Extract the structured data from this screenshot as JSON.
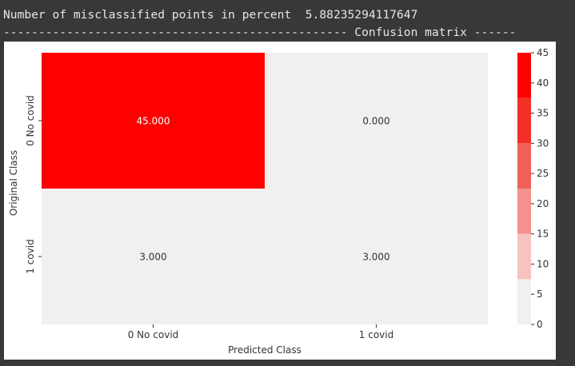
{
  "console": {
    "line1": "Number of misclassified points in percent  5.88235294117647",
    "line2": "------------------------------------------------- Confusion matrix ------"
  },
  "chart_data": {
    "type": "heatmap",
    "xlabel": "Predicted Class",
    "ylabel": "Original Class",
    "x_categories": [
      "0 No covid",
      "1 covid"
    ],
    "y_categories": [
      "0 No covid",
      "1 covid"
    ],
    "values": [
      [
        45,
        0
      ],
      [
        3,
        3
      ]
    ],
    "value_labels": [
      [
        "45.000",
        "0.000"
      ],
      [
        "3.000",
        "3.000"
      ]
    ],
    "colorbar": {
      "range": [
        0,
        45
      ],
      "ticks": [
        0,
        5,
        10,
        15,
        20,
        25,
        30,
        35,
        40,
        45
      ],
      "bands": [
        {
          "from": 0,
          "to": 7.5,
          "color": "#f2f0ef"
        },
        {
          "from": 7.5,
          "to": 15,
          "color": "#f7c3c1"
        },
        {
          "from": 15,
          "to": 22.5,
          "color": "#f3918c"
        },
        {
          "from": 22.5,
          "to": 30,
          "color": "#ee6058"
        },
        {
          "from": 30,
          "to": 37.5,
          "color": "#f23028"
        },
        {
          "from": 37.5,
          "to": 45,
          "color": "#ff0000"
        }
      ]
    },
    "colors": {
      "low": "#f2f0ef",
      "high": "#ff0000",
      "text_on_high": "#ffffff",
      "text_on_low": "#333333"
    }
  }
}
